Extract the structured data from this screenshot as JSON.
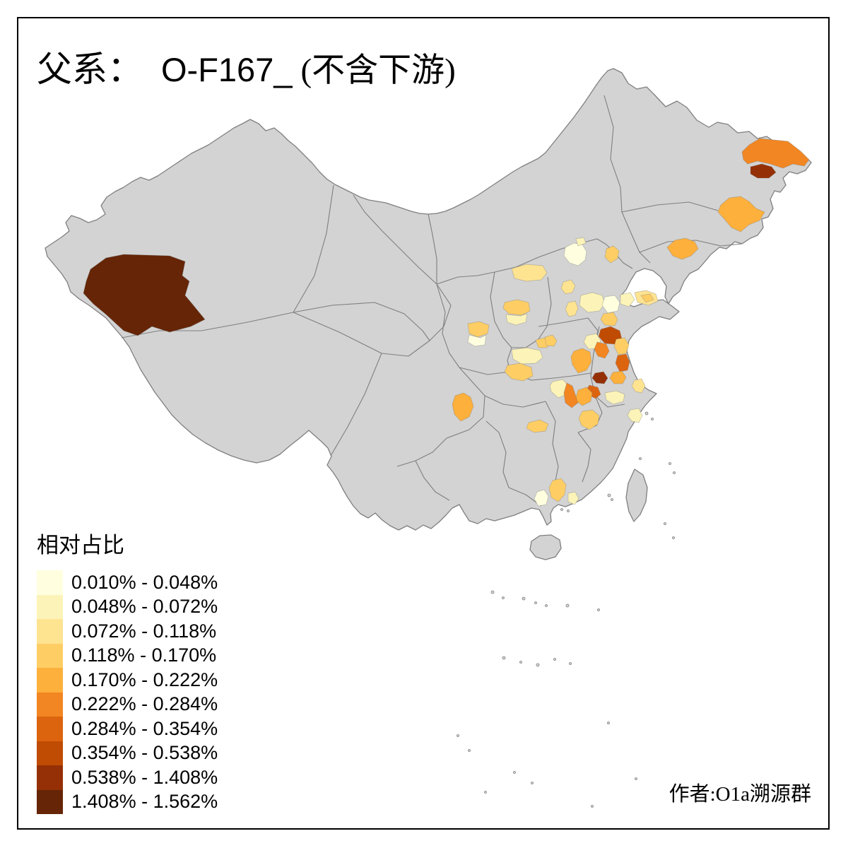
{
  "title": {
    "prefix": "父系：",
    "code": "O-F167_",
    "suffix": "(不含下游)"
  },
  "legend": {
    "title": "相对占比",
    "bins": [
      {
        "label": "0.010% - 0.048%",
        "color": "#FFFFE0"
      },
      {
        "label": "0.048% - 0.072%",
        "color": "#FCF3B8"
      },
      {
        "label": "0.072% - 0.118%",
        "color": "#FEE391"
      },
      {
        "label": "0.118% - 0.170%",
        "color": "#FECE65"
      },
      {
        "label": "0.170% - 0.222%",
        "color": "#FDB03C"
      },
      {
        "label": "0.222% - 0.284%",
        "color": "#F28622"
      },
      {
        "label": "0.284% - 0.354%",
        "color": "#DC640F"
      },
      {
        "label": "0.354% - 0.538%",
        "color": "#C04B02"
      },
      {
        "label": "0.538% - 1.408%",
        "color": "#953006"
      },
      {
        "label": "1.408% - 1.562%",
        "color": "#652506"
      }
    ]
  },
  "attribution": {
    "text": "作者:O1a溯源群"
  },
  "map": {
    "land_color": "#D3D3D3",
    "boundary_color": "#7F7F7F",
    "sea_color": "#FFFFFF",
    "frame_color": "#000000",
    "regions": [
      {
        "id": "xinjiang-southwest",
        "bin": 10
      },
      {
        "id": "heilongjiang-northeast-band",
        "bin": 6
      },
      {
        "id": "heilongjiang-east-dark",
        "bin": 9
      },
      {
        "id": "jilin-east",
        "bin": 5
      },
      {
        "id": "liaoning-east",
        "bin": 5
      },
      {
        "id": "hebei-northeast",
        "bin": 4
      },
      {
        "id": "beijing",
        "bin": 1
      },
      {
        "id": "beijing-northeast-small",
        "bin": 2
      },
      {
        "id": "hebei-central",
        "bin": 3
      },
      {
        "id": "hebei-south",
        "bin": 3
      },
      {
        "id": "shanxi-north",
        "bin": 3
      },
      {
        "id": "shanxi-southwest-upper",
        "bin": 4
      },
      {
        "id": "shanxi-southwest-lower",
        "bin": 2
      },
      {
        "id": "shaanxi-north-upper",
        "bin": 4
      },
      {
        "id": "shaanxi-north-lower",
        "bin": 1
      },
      {
        "id": "henan-north-small",
        "bin": 4
      },
      {
        "id": "henan-west-pale",
        "bin": 2
      },
      {
        "id": "henan-southwest",
        "bin": 4
      },
      {
        "id": "anhui-northwest",
        "bin": 5
      },
      {
        "id": "shandong-west",
        "bin": 2
      },
      {
        "id": "shandong-central",
        "bin": 1
      },
      {
        "id": "shandong-northeast",
        "bin": 2
      },
      {
        "id": "shandong-peninsula",
        "bin": 3
      },
      {
        "id": "shandong-peninsula-tip",
        "bin": 4
      },
      {
        "id": "shandong-southeast",
        "bin": 4
      },
      {
        "id": "shandong-southwest",
        "bin": 2
      },
      {
        "id": "jiangsu-lianyungang",
        "bin": 8
      },
      {
        "id": "jiangsu-suqian",
        "bin": 6
      },
      {
        "id": "jiangsu-yancheng-north",
        "bin": 4
      },
      {
        "id": "jiangsu-huaian",
        "bin": 7
      },
      {
        "id": "jiangsu-central",
        "bin": 5
      },
      {
        "id": "anhui-chuzhou-dark",
        "bin": 9
      },
      {
        "id": "anhui-nanjing-west",
        "bin": 7
      },
      {
        "id": "jiangsu-nantong",
        "bin": 3
      },
      {
        "id": "anhui-central",
        "bin": 5
      },
      {
        "id": "henan-southeast-pale",
        "bin": 2
      },
      {
        "id": "jiangsu-south-pale",
        "bin": 2
      },
      {
        "id": "zhejiang-north-pale",
        "bin": 2
      },
      {
        "id": "anhui-south",
        "bin": 4
      },
      {
        "id": "hubei-east",
        "bin": 6
      },
      {
        "id": "hubei-northwest-small",
        "bin": 4
      },
      {
        "id": "chongqing-northeast",
        "bin": 5
      },
      {
        "id": "hunan-north",
        "bin": 4
      },
      {
        "id": "guangdong-heyuan",
        "bin": 4
      },
      {
        "id": "guangdong-west-pale",
        "bin": 1
      },
      {
        "id": "guangdong-east-pale",
        "bin": 2
      }
    ]
  }
}
